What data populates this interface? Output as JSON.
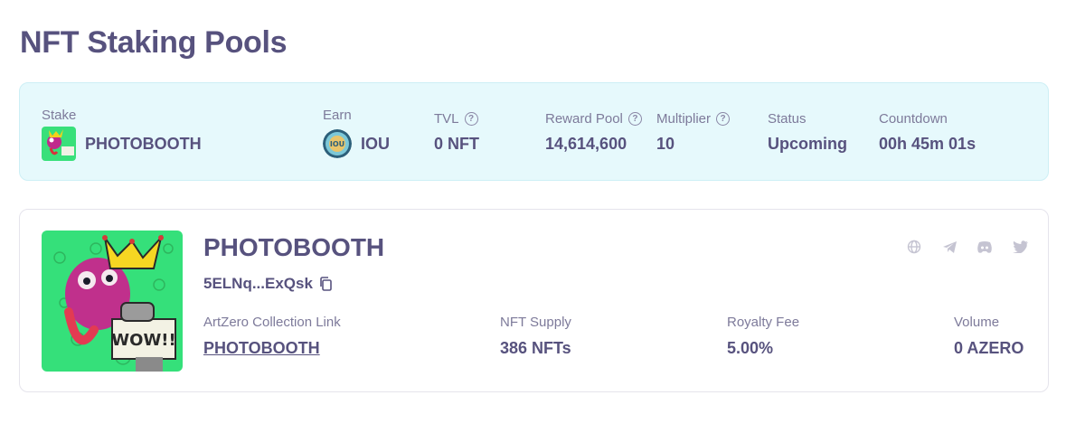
{
  "page": {
    "title": "NFT Staking Pools"
  },
  "pool": {
    "stake_label": "Stake",
    "stake_value": "PHOTOBOOTH",
    "earn_label": "Earn",
    "earn_value": "IOU",
    "tvl_label": "TVL",
    "tvl_value": "0 NFT",
    "reward_label": "Reward Pool",
    "reward_value": "14,614,600",
    "multiplier_label": "Multiplier",
    "multiplier_value": "10",
    "status_label": "Status",
    "status_value": "Upcoming",
    "countdown_label": "Countdown",
    "countdown_value": "00h 45m 01s"
  },
  "collection": {
    "name": "PHOTOBOOTH",
    "address": "5ELNq...ExQsk",
    "link_label": "ArtZero Collection Link",
    "link_value": "PHOTOBOOTH",
    "supply_label": "NFT Supply",
    "supply_value": "386 NFTs",
    "royalty_label": "Royalty Fee",
    "royalty_value": "5.00%",
    "volume_label": "Volume",
    "volume_value": "0 AZERO"
  },
  "icons": {
    "help": "help-circle-icon",
    "copy": "copy-icon",
    "website": "globe-icon",
    "telegram": "telegram-icon",
    "discord": "discord-icon",
    "twitter": "twitter-icon"
  },
  "colors": {
    "accent": "#57527e",
    "summary_bg": "#e6f9fc",
    "muted": "#7d7a9a",
    "social": "#c5c4d2"
  }
}
